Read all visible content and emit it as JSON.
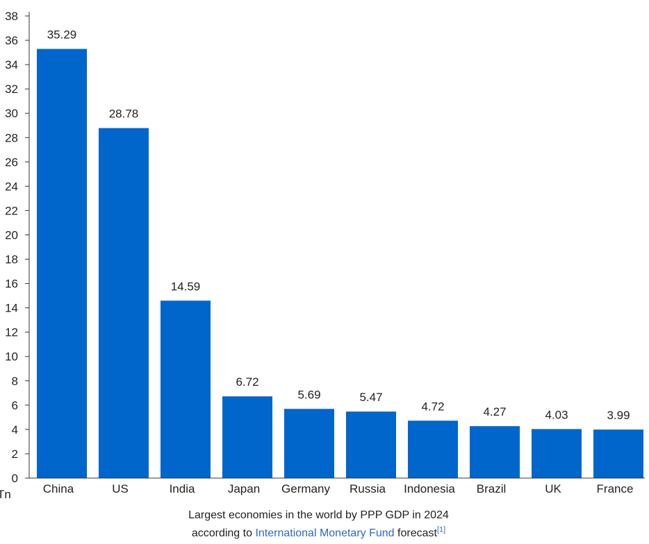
{
  "chart_data": {
    "type": "bar",
    "categories": [
      "China",
      "US",
      "India",
      "Japan",
      "Germany",
      "Russia",
      "Indonesia",
      "Brazil",
      "UK",
      "France"
    ],
    "values": [
      35.29,
      28.78,
      14.59,
      6.72,
      5.69,
      5.47,
      4.72,
      4.27,
      4.03,
      3.99
    ],
    "value_labels": [
      "35.29",
      "28.78",
      "14.59",
      "6.72",
      "5.69",
      "5.47",
      "4.72",
      "4.27",
      "4.03",
      "3.99"
    ],
    "y_ticks": [
      0,
      2,
      4,
      6,
      8,
      10,
      12,
      14,
      16,
      18,
      20,
      22,
      24,
      26,
      28,
      30,
      32,
      34,
      36,
      38
    ],
    "ylim": [
      0,
      38
    ],
    "y_unit": "Tn",
    "bar_color": "#0066cc",
    "grid": false,
    "legend": "none"
  },
  "caption": {
    "line1": "Largest economies in the world by PPP GDP in 2024",
    "line2_prefix": "according to",
    "link_text": "International Monetary Fund",
    "line2_suffix": "forecast",
    "footnote": "[1]"
  }
}
